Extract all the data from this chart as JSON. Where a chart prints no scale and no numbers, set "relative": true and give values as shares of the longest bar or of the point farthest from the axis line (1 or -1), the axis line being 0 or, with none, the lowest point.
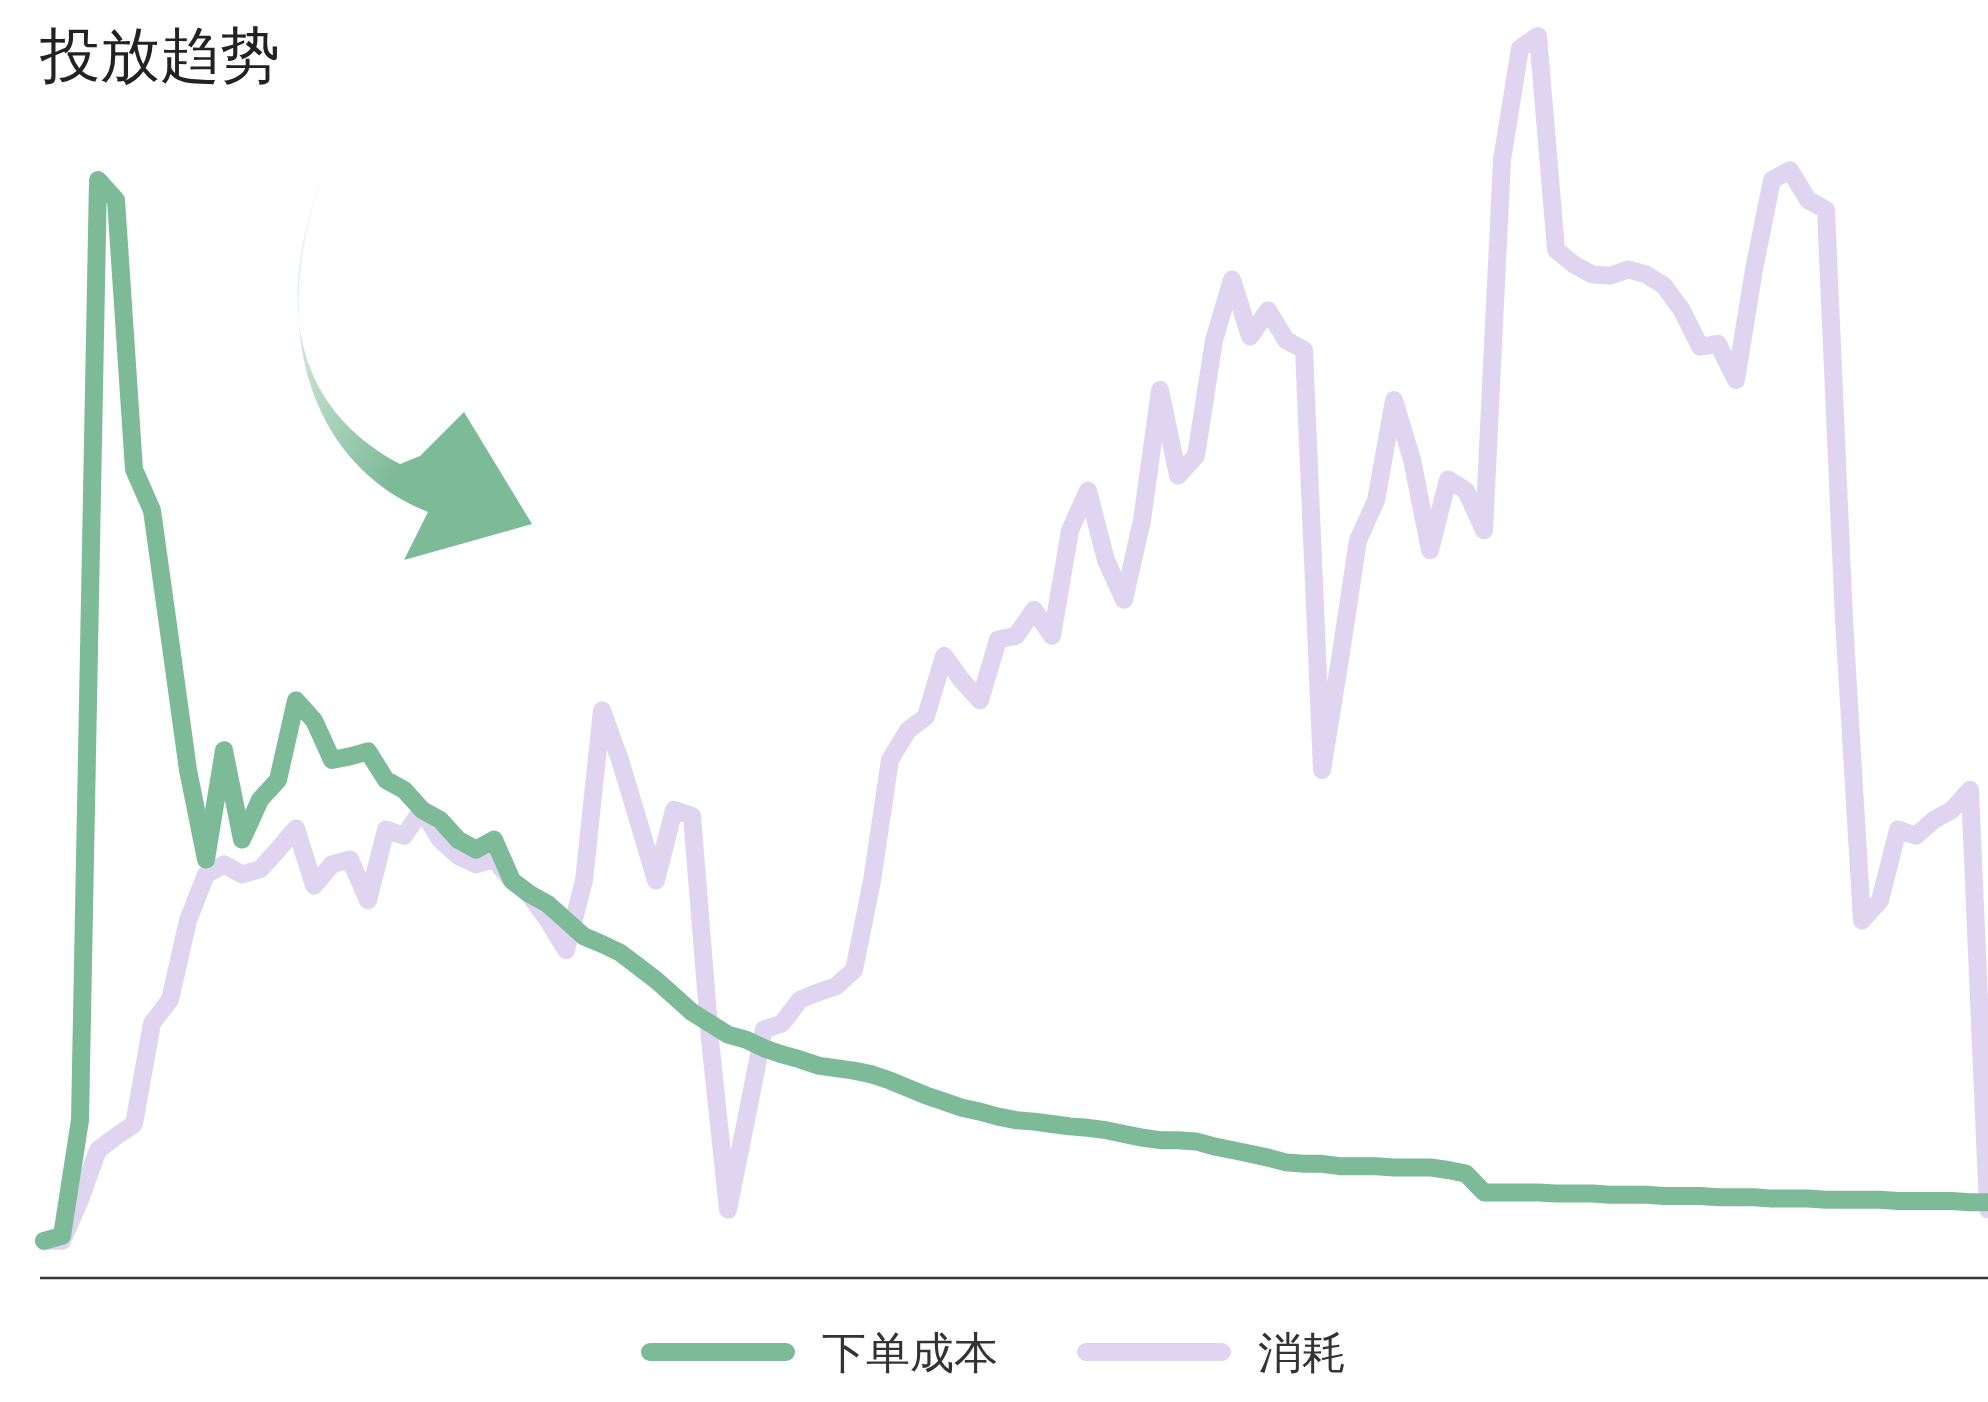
{
  "chart_data": {
    "type": "line",
    "title": "投放趋势",
    "relative": true,
    "legend": "bottom",
    "categories": [
      null,
      null,
      null,
      null,
      null,
      null,
      null,
      null,
      null,
      null,
      null,
      null,
      null,
      null,
      null,
      null,
      null,
      null,
      null,
      null,
      null,
      null,
      null,
      null,
      null,
      null,
      null,
      null,
      null,
      null,
      null,
      null,
      null,
      null,
      null,
      null,
      null,
      null,
      null,
      null,
      null,
      null,
      null,
      null,
      null,
      null,
      null,
      null,
      null,
      null,
      null,
      null,
      null,
      null,
      null,
      null,
      null,
      null,
      null,
      null,
      null,
      null,
      null,
      null,
      null,
      null,
      null,
      null,
      null,
      null,
      null,
      null,
      null,
      null,
      null,
      null,
      null,
      null,
      null,
      null,
      null,
      null,
      null,
      null,
      null,
      null,
      null,
      null,
      null,
      null,
      null,
      null,
      null,
      null,
      null,
      null,
      null,
      null,
      null,
      null,
      null,
      null,
      null,
      null,
      null,
      null,
      null,
      null,
      null
    ],
    "series": [
      {
        "name": "消耗",
        "color": "#e0d5f1",
        "values": [
          0.03,
          0.03,
          0.063,
          0.103,
          0.114,
          0.124,
          0.205,
          0.224,
          0.288,
          0.325,
          0.333,
          0.325,
          0.329,
          0.345,
          0.362,
          0.316,
          0.333,
          0.337,
          0.304,
          0.361,
          0.356,
          0.377,
          0.353,
          0.34,
          0.333,
          0.337,
          0.32,
          0.308,
          0.288,
          0.264,
          0.32,
          0.457,
          0.417,
          0.369,
          0.32,
          0.377,
          0.372,
          0.192,
          0.055,
          0.127,
          0.2,
          0.205,
          0.224,
          0.23,
          0.235,
          0.248,
          0.32,
          0.417,
          0.441,
          0.452,
          0.501,
          0.481,
          0.465,
          0.514,
          0.517,
          0.538,
          0.517,
          0.602,
          0.634,
          0.578,
          0.546,
          0.61,
          0.715,
          0.646,
          0.662,
          0.755,
          0.804,
          0.758,
          0.779,
          0.755,
          0.747,
          0.409,
          0.498,
          0.594,
          0.626,
          0.707,
          0.659,
          0.586,
          0.643,
          0.634,
          0.602,
          0.9,
          0.99,
          1,
          0.828,
          0.816,
          0.808,
          0.807,
          0.812,
          0.808,
          0.799,
          0.779,
          0.75,
          0.752,
          0.723,
          0.812,
          0.884,
          0.892,
          0.868,
          0.86,
          0.53,
          0.288,
          0.304,
          0.361,
          0.356,
          0.369,
          0.377,
          0.393,
          0.055
        ]
      },
      {
        "name": "下单成本",
        "color": "#7dba97",
        "values": [
          0.03,
          0.034,
          0.127,
          0.884,
          0.868,
          0.651,
          0.618,
          0.514,
          0.409,
          0.337,
          0.425,
          0.353,
          0.385,
          0.401,
          0.465,
          0.449,
          0.417,
          0.42,
          0.424,
          0.401,
          0.393,
          0.377,
          0.369,
          0.353,
          0.345,
          0.353,
          0.32,
          0.309,
          0.301,
          0.288,
          0.275,
          0.269,
          0.262,
          0.251,
          0.24,
          0.227,
          0.214,
          0.205,
          0.196,
          0.192,
          0.185,
          0.18,
          0.176,
          0.171,
          0.169,
          0.167,
          0.164,
          0.159,
          0.153,
          0.147,
          0.142,
          0.137,
          0.134,
          0.13,
          0.127,
          0.126,
          0.124,
          0.122,
          0.121,
          0.119,
          0.116,
          0.113,
          0.111,
          0.111,
          0.11,
          0.106,
          0.103,
          0.1,
          0.097,
          0.093,
          0.092,
          0.092,
          0.09,
          0.09,
          0.09,
          0.089,
          0.089,
          0.089,
          0.087,
          0.084,
          0.069,
          0.069,
          0.069,
          0.069,
          0.068,
          0.068,
          0.068,
          0.067,
          0.067,
          0.067,
          0.066,
          0.066,
          0.066,
          0.065,
          0.065,
          0.065,
          0.064,
          0.064,
          0.064,
          0.063,
          0.063,
          0.063,
          0.063,
          0.062,
          0.062,
          0.062,
          0.062,
          0.061,
          0.061
        ]
      }
    ]
  }
}
